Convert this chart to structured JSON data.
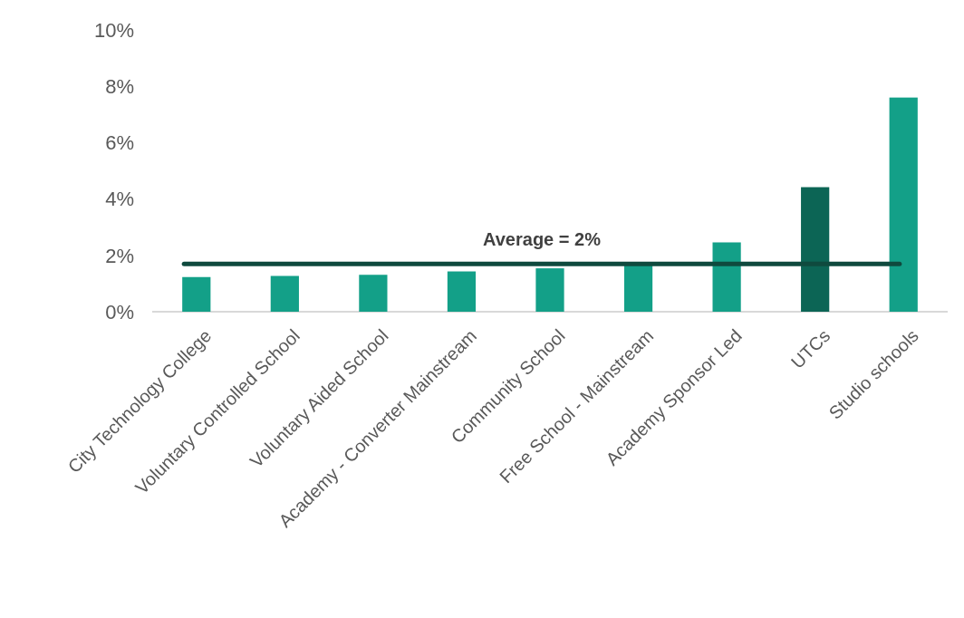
{
  "chart_data": {
    "type": "bar",
    "categories": [
      "City Technology College",
      "Voluntary Controlled School",
      "Voluntary Aided School",
      "Academy - Converter Mainstream",
      "Community School",
      "Free School - Mainstream",
      "Academy Sponsor Led",
      "UTCs",
      "Studio schools"
    ],
    "values": [
      1.23,
      1.27,
      1.31,
      1.43,
      1.54,
      1.7,
      2.46,
      4.42,
      7.6
    ],
    "colors": [
      "#13a088",
      "#13a088",
      "#13a088",
      "#13a088",
      "#13a088",
      "#13a088",
      "#13a088",
      "#0c6555",
      "#13a088"
    ],
    "ylim": [
      0,
      10
    ],
    "yticks": [
      {
        "value": 0,
        "label": "0%"
      },
      {
        "value": 2,
        "label": "2%"
      },
      {
        "value": 4,
        "label": "4%"
      },
      {
        "value": 6,
        "label": "6%"
      },
      {
        "value": 8,
        "label": "8%"
      },
      {
        "value": 10,
        "label": "10%"
      }
    ],
    "ref_lines": [
      {
        "axis": "y",
        "value": 1.7,
        "label": "Average = 2%",
        "color": "#0f4a3e"
      }
    ],
    "grid": false
  }
}
